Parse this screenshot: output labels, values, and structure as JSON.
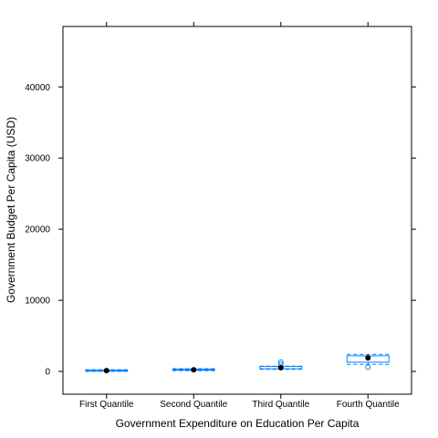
{
  "chart_data": {
    "type": "box",
    "xlabel": "Government Expenditure on Education Per Capita",
    "ylabel": "Government Budget Per Capita (USD)",
    "categories": [
      "First Quantile",
      "Second Quantile",
      "Third Quantile",
      "Fourth Quantile"
    ],
    "ylim": [
      -3200,
      48500
    ],
    "yticks": [
      0,
      10000,
      20000,
      30000,
      40000
    ],
    "grid": false,
    "colors": {
      "box": "#0080ff",
      "median_dot": "#000000"
    },
    "boxes": [
      {
        "category": "First Quantile",
        "whisker_low": 0,
        "q1": 60,
        "median": 120,
        "q3": 180,
        "whisker_high": 250,
        "outliers": []
      },
      {
        "category": "Second Quantile",
        "whisker_low": 100,
        "q1": 180,
        "median": 230,
        "q3": 310,
        "whisker_high": 400,
        "outliers": []
      },
      {
        "category": "Third Quantile",
        "whisker_low": 300,
        "q1": 380,
        "median": 520,
        "q3": 700,
        "whisker_high": 750,
        "outliers": [
          1000,
          1300
        ]
      },
      {
        "category": "Fourth Quantile",
        "whisker_low": 1000,
        "q1": 1300,
        "median": 1900,
        "q3": 2200,
        "whisker_high": 2400,
        "outliers": [
          600
        ]
      }
    ]
  }
}
